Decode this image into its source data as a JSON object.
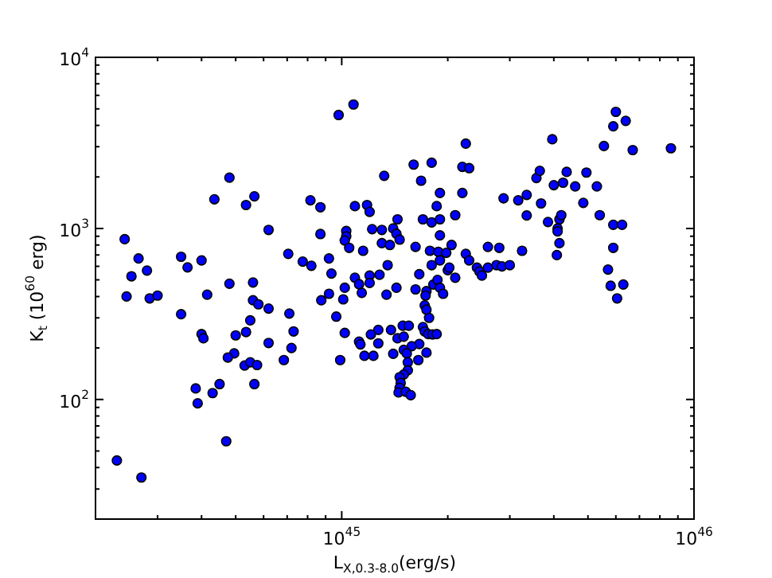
{
  "chart_data": {
    "type": "scatter",
    "xlabel": "L$_{X,0.3-8.0}$(erg/s)",
    "ylabel": "K$_{t}$ (10$^{60}$ erg)",
    "log": "xy",
    "grid": false,
    "marker": "circle",
    "color": "#0000ff",
    "xlim": [
      2e+44,
      1e+46
    ],
    "ylim": [
      20,
      10000
    ],
    "xticks": [
      {
        "value": 2e+44,
        "label": null
      },
      {
        "value": 3e+44,
        "label": null
      },
      {
        "value": 4e+44,
        "label": null
      },
      {
        "value": 5e+44,
        "label": null
      },
      {
        "value": 6e+44,
        "label": null
      },
      {
        "value": 7e+44,
        "label": null
      },
      {
        "value": 8e+44,
        "label": null
      },
      {
        "value": 9e+44,
        "label": null
      },
      {
        "value": 1e+45,
        "label": "10$^{45}$"
      },
      {
        "value": 2e+45,
        "label": null
      },
      {
        "value": 3e+45,
        "label": null
      },
      {
        "value": 4e+45,
        "label": null
      },
      {
        "value": 5e+45,
        "label": null
      },
      {
        "value": 6e+45,
        "label": null
      },
      {
        "value": 7e+45,
        "label": null
      },
      {
        "value": 8e+45,
        "label": null
      },
      {
        "value": 9e+45,
        "label": null
      },
      {
        "value": 1e+46,
        "label": "10$^{46}$"
      }
    ],
    "yticks": [
      {
        "value": 20,
        "label": null
      },
      {
        "value": 30,
        "label": null
      },
      {
        "value": 40,
        "label": null
      },
      {
        "value": 50,
        "label": null
      },
      {
        "value": 60,
        "label": null
      },
      {
        "value": 70,
        "label": null
      },
      {
        "value": 80,
        "label": null
      },
      {
        "value": 90,
        "label": null
      },
      {
        "value": 100,
        "label": "10$^{2}$"
      },
      {
        "value": 200,
        "label": null
      },
      {
        "value": 300,
        "label": null
      },
      {
        "value": 400,
        "label": null
      },
      {
        "value": 500,
        "label": null
      },
      {
        "value": 600,
        "label": null
      },
      {
        "value": 700,
        "label": null
      },
      {
        "value": 800,
        "label": null
      },
      {
        "value": 900,
        "label": null
      },
      {
        "value": 1000,
        "label": "10$^{3}$"
      },
      {
        "value": 2000,
        "label": null
      },
      {
        "value": 3000,
        "label": null
      },
      {
        "value": 4000,
        "label": null
      },
      {
        "value": 5000,
        "label": null
      },
      {
        "value": 6000,
        "label": null
      },
      {
        "value": 7000,
        "label": null
      },
      {
        "value": 8000,
        "label": null
      },
      {
        "value": 9000,
        "label": null
      },
      {
        "value": 10000,
        "label": "10$^{4}$"
      }
    ],
    "x": [
      9.8e+44,
      1.08e+45,
      4.8e+44,
      4.35e+44,
      5.35e+44,
      5.65e+44,
      6.2e+44,
      2.42e+44,
      2.65e+44,
      2.8e+44,
      2.53e+44,
      3.5e+44,
      3.65e+44,
      4e+44,
      7.05e+44,
      7.75e+44,
      8.2e+44,
      9.2e+44,
      9.35e+44,
      8.15e+44,
      8.7e+44,
      8.7e+44,
      1.03e+45,
      1.03e+45,
      1.02e+45,
      1.05e+45,
      1.15e+45,
      1.09e+45,
      1.18e+45,
      1.2e+45,
      1.22e+45,
      1.3e+45,
      1.3e+45,
      1.32e+45,
      1.35e+45,
      6e+45,
      5.9e+45,
      6.4e+45,
      3.96e+45,
      5.55e+45,
      6.7e+45,
      8.6e+45,
      2.25e+45,
      1.6e+45,
      1.8e+45,
      2.2e+45,
      2.3e+45,
      1.68e+45,
      1.9e+45,
      2.2e+45,
      1.86e+45,
      2.1e+45,
      1.7e+45,
      1.8e+45,
      1.9e+45,
      1.44e+45,
      1.4e+45,
      1.43e+45,
      1.46e+45,
      1.37e+45,
      1.9e+45,
      1.62e+45,
      1.78e+45,
      1.88e+45,
      1.98e+45,
      2.05e+45,
      1.9e+45,
      2.25e+45,
      2.3e+45,
      2.6e+45,
      2.8e+45,
      3.25e+45,
      2.88e+45,
      3.17e+45,
      3.35e+45,
      3.68e+45,
      3.57e+45,
      3.65e+45,
      4e+45,
      4.25e+45,
      4.35e+45,
      4.6e+45,
      4.95e+45,
      4.85e+45,
      5.3e+45,
      3.35e+45,
      3.85e+45,
      4.15e+45,
      4.2e+45,
      4.1e+45,
      4.1e+45,
      4.15e+45,
      4.08e+45,
      5.4e+45,
      5.9e+45,
      6.25e+45,
      5.9e+45,
      1.09e+45,
      1.12e+45,
      1.2e+45,
      1.2e+45,
      1.28e+45,
      1.02e+45,
      2.45e+44,
      2.85e+44,
      3e+44,
      3.5e+44,
      4.15e+44,
      4.8e+44,
      5.6e+44,
      5.6e+44,
      5.8e+44,
      6.2e+44,
      7.1e+44,
      5.5e+44,
      5.35e+44,
      5e+44,
      7.3e+44,
      4e+44,
      4.05e+44,
      6.2e+44,
      7.2e+44,
      6.85e+44,
      4.95e+44,
      4.75e+44,
      5.3e+44,
      5.5e+44,
      5.75e+44,
      5.65e+44,
      4.5e+44,
      4.3e+44,
      3.85e+44,
      3.9e+44,
      4.7e+44,
      2.3e+44,
      2.7e+44,
      8.75e+44,
      9.2e+44,
      9.65e+44,
      1.01e+45,
      1.02e+45,
      9.9e+44,
      1.12e+45,
      1.13e+45,
      1.14e+45,
      1.27e+45,
      1.27e+45,
      1.21e+45,
      1.16e+45,
      1.23e+45,
      1.34e+45,
      1.8e+45,
      2e+45,
      2.02e+45,
      2.1e+45,
      2.42e+45,
      2.46e+45,
      2.5e+45,
      2.6e+45,
      2.75e+45,
      2.85e+45,
      3e+45,
      5.7e+45,
      5.8e+45,
      6.3e+45,
      6.05e+45,
      1.66e+45,
      1.43e+45,
      1.62e+45,
      1.74e+45,
      1.82e+45,
      1.87e+45,
      1.9e+45,
      1.94e+45,
      1.73e+45,
      1.72e+45,
      1.74e+45,
      1.77e+45,
      1.38e+45,
      1.44e+45,
      1.5e+45,
      1.49e+45,
      1.55e+45,
      1.7e+45,
      1.72e+45,
      1.76e+45,
      1.81e+45,
      1.86e+45,
      1.66e+45,
      1.58e+45,
      1.5e+45,
      1.53e+45,
      1.4e+45,
      1.74e+45,
      1.65e+45,
      1.54e+45,
      1.54e+45,
      1.5e+45,
      1.46e+45,
      1.47e+45,
      1.46e+45,
      1.45e+45,
      1.52e+45,
      1.57e+45
    ],
    "values": [
      4600,
      5300,
      1980,
      1480,
      1370,
      1540,
      980,
      865,
      667,
      567,
      525,
      683,
      592,
      650,
      710,
      640,
      605,
      667,
      545,
      1460,
      1330,
      927,
      965,
      900,
      850,
      770,
      740,
      1350,
      1370,
      1250,
      990,
      980,
      820,
      2030,
      610,
      4800,
      3950,
      4250,
      3320,
      3030,
      2870,
      2940,
      3130,
      2360,
      2420,
      2290,
      2250,
      1900,
      1610,
      1610,
      1350,
      1195,
      1130,
      1085,
      1130,
      1130,
      1000,
      930,
      860,
      800,
      910,
      780,
      740,
      730,
      720,
      800,
      650,
      710,
      650,
      780,
      770,
      740,
      1500,
      1460,
      1570,
      1400,
      1970,
      2170,
      1790,
      1850,
      2140,
      1760,
      2120,
      1410,
      1760,
      1190,
      1090,
      1130,
      1195,
      1000,
      960,
      820,
      698,
      1195,
      1050,
      1050,
      770,
      515,
      472,
      530,
      480,
      536,
      450,
      400,
      390,
      405,
      315,
      410,
      475,
      483,
      380,
      360,
      340,
      318,
      290,
      248,
      237,
      250,
      241,
      228,
      214,
      200,
      170,
      186,
      176,
      158,
      165,
      159,
      123,
      123,
      109,
      116,
      95,
      57,
      44,
      35,
      380,
      415,
      305,
      385,
      245,
      170,
      218,
      210,
      420,
      213,
      255,
      240,
      180,
      180,
      410,
      610,
      570,
      590,
      515,
      590,
      560,
      530,
      590,
      610,
      600,
      610,
      575,
      462,
      470,
      390,
      540,
      450,
      440,
      430,
      470,
      500,
      450,
      415,
      405,
      355,
      335,
      300,
      255,
      228,
      233,
      270,
      270,
      265,
      250,
      241,
      240,
      241,
      211,
      205,
      195,
      186,
      185,
      188,
      170,
      165,
      148,
      140,
      135,
      125,
      117,
      110,
      111,
      106
    ]
  }
}
